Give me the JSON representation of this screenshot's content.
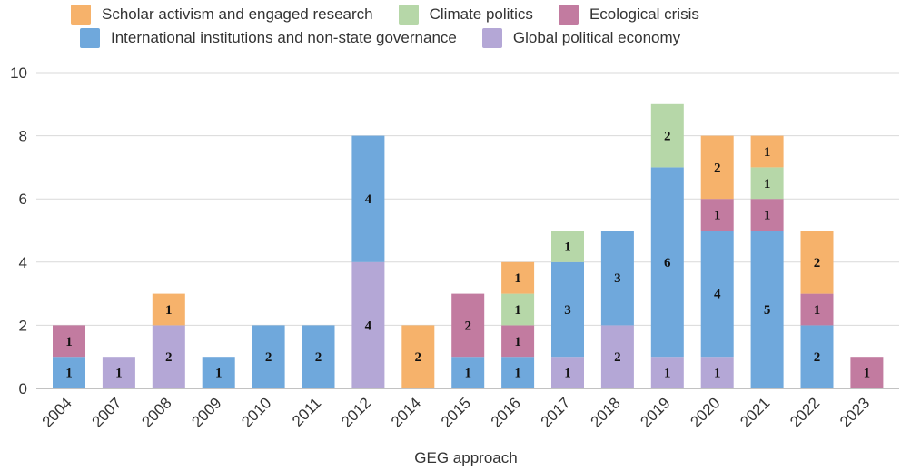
{
  "chart_data": {
    "type": "bar",
    "stacked": true,
    "categories": [
      "2004",
      "2007",
      "2008",
      "2009",
      "2010",
      "2011",
      "2012",
      "2014",
      "2015",
      "2016",
      "2017",
      "2018",
      "2019",
      "2020",
      "2021",
      "2022",
      "2023"
    ],
    "series": [
      {
        "name": "Global political economy",
        "color": "#b4a7d6",
        "values": [
          0,
          1,
          2,
          0,
          0,
          0,
          4,
          0,
          0,
          0,
          1,
          2,
          1,
          1,
          0,
          0,
          0
        ]
      },
      {
        "name": "International institutions and non-state governance",
        "color": "#6fa8dc",
        "values": [
          1,
          0,
          0,
          1,
          2,
          2,
          4,
          0,
          1,
          1,
          3,
          3,
          6,
          4,
          5,
          2,
          0
        ]
      },
      {
        "name": "Ecological crisis",
        "color": "#c27ba0",
        "values": [
          1,
          0,
          0,
          0,
          0,
          0,
          0,
          0,
          2,
          1,
          0,
          0,
          0,
          1,
          1,
          1,
          1
        ]
      },
      {
        "name": "Climate politics",
        "color": "#b6d7a8",
        "values": [
          0,
          0,
          0,
          0,
          0,
          0,
          0,
          0,
          0,
          1,
          1,
          0,
          2,
          0,
          1,
          0,
          0
        ]
      },
      {
        "name": "Scholar activism and engaged research",
        "color": "#f6b26b",
        "values": [
          0,
          0,
          1,
          0,
          0,
          0,
          0,
          2,
          0,
          1,
          0,
          0,
          0,
          2,
          1,
          2,
          0
        ]
      }
    ],
    "xlabel": "GEG approach",
    "ylabel": "",
    "ylim": [
      0,
      10
    ],
    "yticks": [
      0,
      2,
      4,
      6,
      8,
      10
    ],
    "grid": true,
    "legend_position": "top"
  },
  "legend": {
    "row1": [
      {
        "label": "Scholar activism and engaged research",
        "color": "#f6b26b"
      },
      {
        "label": "Climate politics",
        "color": "#b6d7a8"
      },
      {
        "label": "Ecological crisis",
        "color": "#c27ba0"
      }
    ],
    "row2": [
      {
        "label": "International institutions and non-state governance",
        "color": "#6fa8dc"
      },
      {
        "label": "Global political economy",
        "color": "#b4a7d6"
      }
    ]
  }
}
